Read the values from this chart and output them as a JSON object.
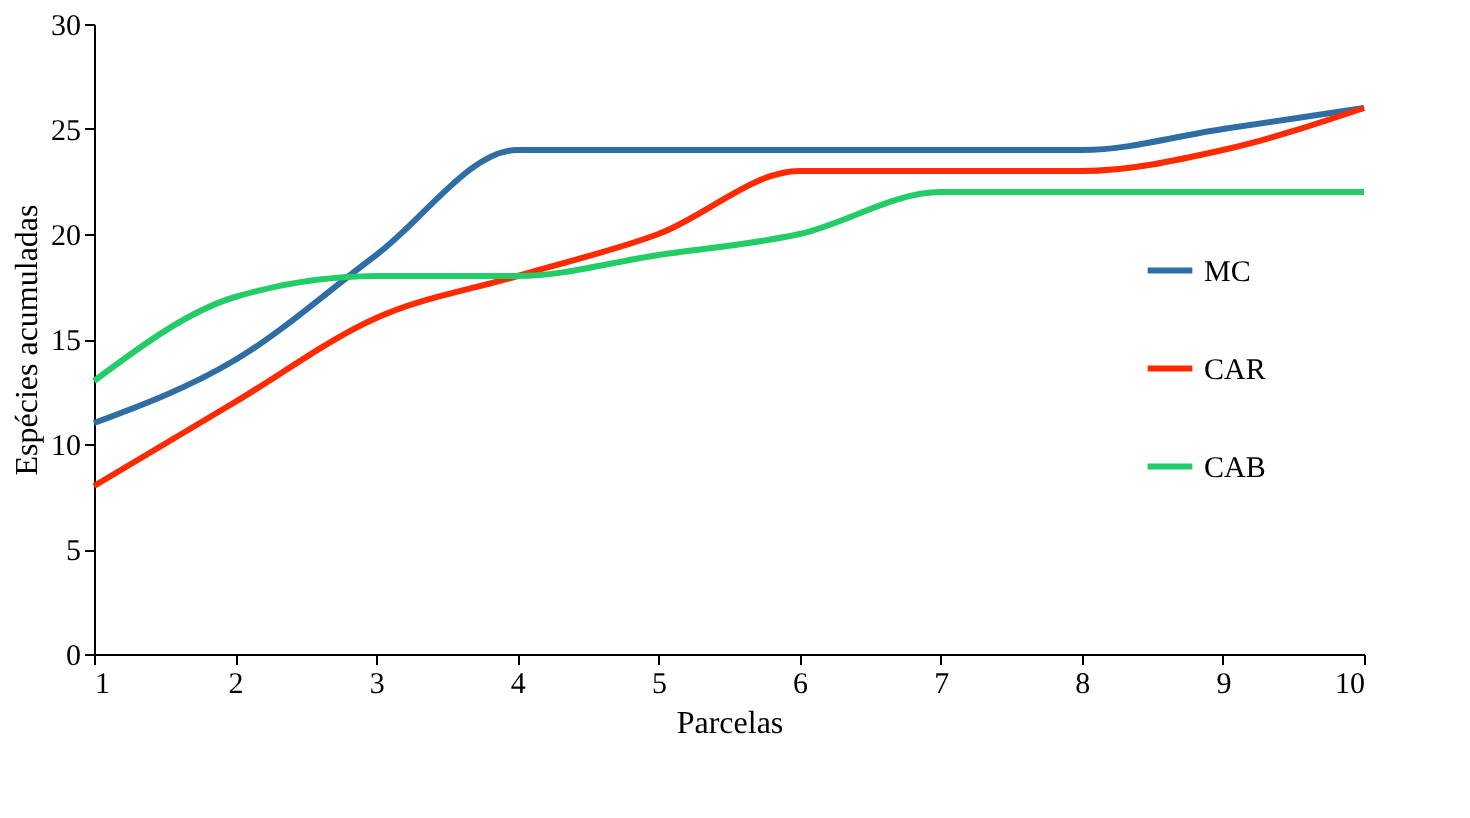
{
  "chart_data": {
    "type": "line",
    "xlabel": "Parcelas",
    "ylabel": "Espécies acumuladas",
    "x": [
      1,
      2,
      3,
      4,
      5,
      6,
      7,
      8,
      9,
      10
    ],
    "series": [
      {
        "name": "MC",
        "color": "#2f6ea5",
        "values": [
          11,
          14,
          19,
          24,
          24,
          24,
          24,
          24,
          25,
          26
        ]
      },
      {
        "name": "CAR",
        "color": "#ff2a00",
        "values": [
          8,
          12,
          16,
          18,
          20,
          23,
          23,
          23,
          24,
          26
        ]
      },
      {
        "name": "CAB",
        "color": "#22cc66",
        "values": [
          13,
          17,
          18,
          18,
          19,
          20,
          22,
          22,
          22,
          22
        ]
      }
    ],
    "xlim": [
      1,
      10
    ],
    "xticks": [
      1,
      2,
      3,
      4,
      5,
      6,
      7,
      8,
      9,
      10
    ],
    "ylim": [
      0,
      30
    ],
    "yticks": [
      0,
      5,
      10,
      15,
      20,
      25,
      30
    ],
    "grid": false,
    "legend": "right",
    "marker": "none",
    "line_style": "solid"
  }
}
